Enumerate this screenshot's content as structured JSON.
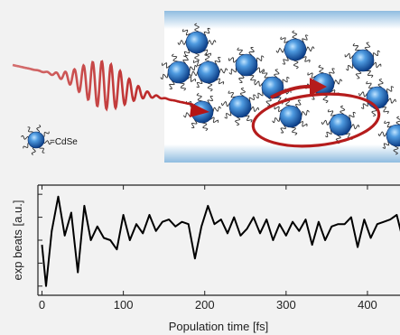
{
  "legend": {
    "label": "=CdSe"
  },
  "chart_data": {
    "type": "line",
    "xlabel": "Population time [fs]",
    "ylabel": "exp beats [a.u.]",
    "x_ticks": [
      0,
      100,
      200,
      300,
      400
    ],
    "xlim": [
      -5,
      440
    ],
    "ylim": [
      -1.2,
      1.2
    ],
    "grid": false,
    "series": [
      {
        "color": "#000000",
        "x": [
          0,
          5,
          12,
          20,
          28,
          36,
          44,
          52,
          60,
          68,
          76,
          84,
          92,
          100,
          108,
          116,
          124,
          132,
          140,
          148,
          156,
          164,
          172,
          180,
          188,
          196,
          204,
          212,
          220,
          228,
          236,
          244,
          252,
          260,
          268,
          276,
          284,
          292,
          300,
          308,
          316,
          324,
          332,
          340,
          348,
          356,
          364,
          372,
          380,
          388,
          396,
          404,
          412,
          420,
          428,
          436,
          443
        ],
        "y": [
          -0.1,
          -1.0,
          0.2,
          0.95,
          0.1,
          0.6,
          -0.7,
          0.75,
          0.0,
          0.3,
          0.05,
          0.0,
          -0.2,
          0.55,
          0.0,
          0.35,
          0.15,
          0.55,
          0.2,
          0.4,
          0.45,
          0.3,
          0.4,
          0.35,
          -0.4,
          0.3,
          0.75,
          0.35,
          0.45,
          0.15,
          0.5,
          0.1,
          0.25,
          0.5,
          0.15,
          0.45,
          0.0,
          0.35,
          0.1,
          0.4,
          0.2,
          0.45,
          -0.1,
          0.4,
          0.0,
          0.3,
          0.35,
          0.35,
          0.5,
          -0.15,
          0.45,
          0.05,
          0.35,
          0.4,
          0.45,
          0.55,
          0.05
        ]
      }
    ]
  }
}
